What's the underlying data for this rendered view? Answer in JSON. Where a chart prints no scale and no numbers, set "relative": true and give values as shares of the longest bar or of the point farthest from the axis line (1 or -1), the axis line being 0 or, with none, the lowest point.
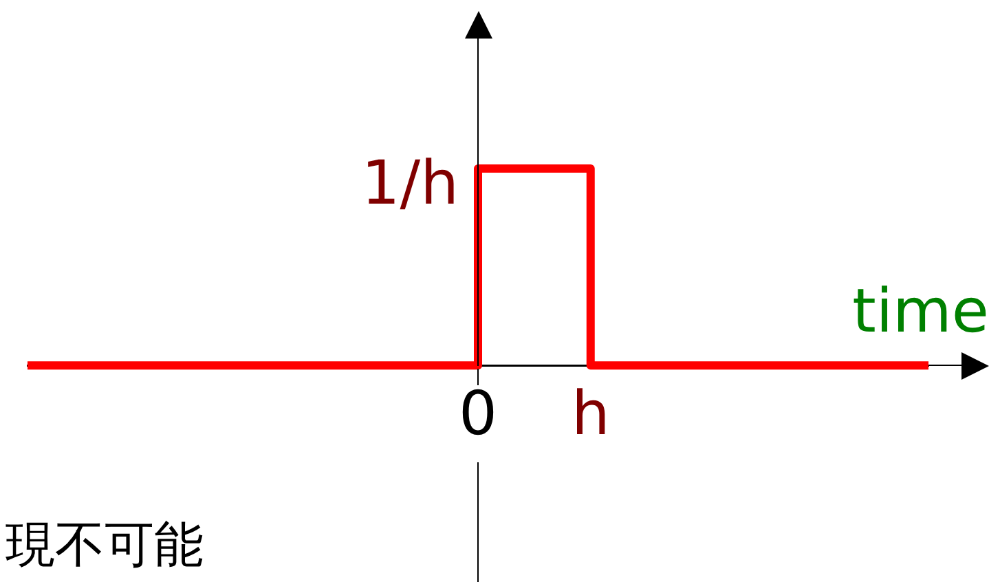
{
  "chart_data": {
    "type": "step",
    "xlabel": "time",
    "relative": true,
    "categories": [
      null,
      null,
      null,
      null,
      "0",
      "h",
      null,
      null,
      null
    ],
    "series": [
      {
        "color": "#ff0000",
        "values": [
          0,
          0,
          0,
          0,
          1,
          0,
          0,
          0,
          0
        ]
      }
    ],
    "grid": false,
    "legend": false,
    "marker": "none",
    "line_style": "solid",
    "annotations": [
      {
        "text": "1/h",
        "x": "0",
        "y": 1
      },
      "現不可能"
    ]
  }
}
